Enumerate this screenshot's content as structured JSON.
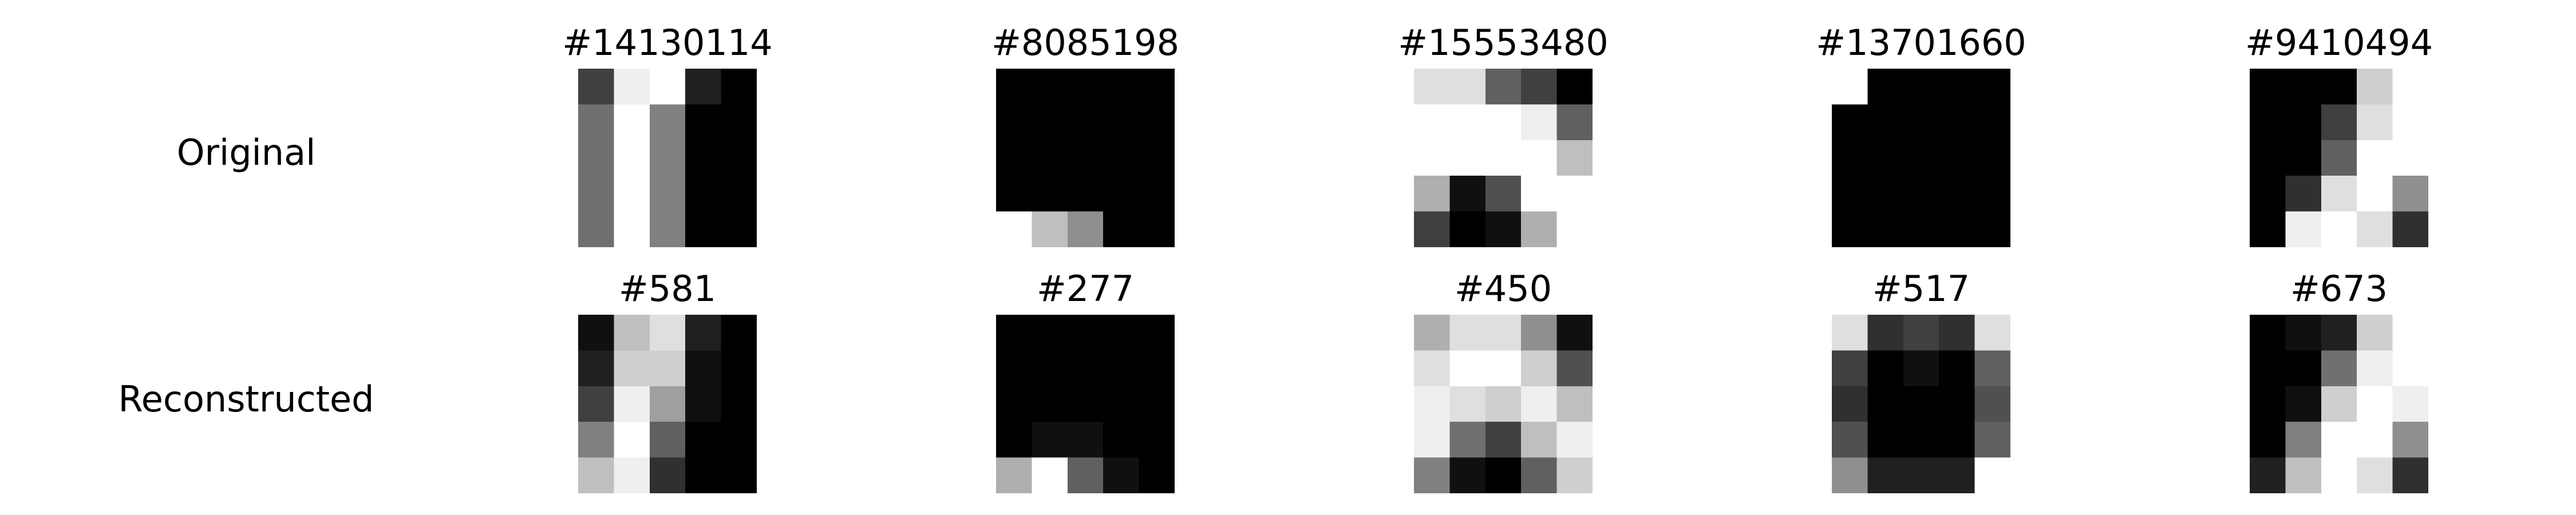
{
  "row_labels": {
    "original": "Original",
    "reconstructed": "Reconstructed"
  },
  "chart_data": {
    "type": "heatmap",
    "colormap": "gray_r",
    "value_range": [
      0,
      16
    ],
    "grid_size": [
      5,
      5
    ],
    "panels": [
      {
        "row": "original",
        "title": "#14130114",
        "values": [
          [
            12,
            1,
            0,
            14,
            16
          ],
          [
            9,
            0,
            8,
            16,
            16
          ],
          [
            9,
            0,
            8,
            16,
            16
          ],
          [
            9,
            0,
            8,
            16,
            16
          ],
          [
            9,
            0,
            8,
            16,
            16
          ]
        ]
      },
      {
        "row": "original",
        "title": "#8085198",
        "values": [
          [
            16,
            16,
            16,
            16,
            16
          ],
          [
            16,
            16,
            16,
            16,
            16
          ],
          [
            16,
            16,
            16,
            16,
            16
          ],
          [
            16,
            16,
            16,
            16,
            16
          ],
          [
            0,
            4,
            7,
            16,
            16
          ]
        ]
      },
      {
        "row": "original",
        "title": "#15553480",
        "values": [
          [
            2,
            2,
            10,
            12,
            16
          ],
          [
            0,
            0,
            0,
            1,
            10
          ],
          [
            0,
            0,
            0,
            0,
            4
          ],
          [
            5,
            15,
            11,
            0,
            0
          ],
          [
            12,
            16,
            15,
            5,
            0
          ]
        ]
      },
      {
        "row": "original",
        "title": "#13701660",
        "values": [
          [
            0,
            16,
            16,
            16,
            16
          ],
          [
            16,
            16,
            16,
            16,
            16
          ],
          [
            16,
            16,
            16,
            16,
            16
          ],
          [
            16,
            16,
            16,
            16,
            16
          ],
          [
            16,
            16,
            16,
            16,
            16
          ]
        ]
      },
      {
        "row": "original",
        "title": "#9410494",
        "values": [
          [
            16,
            16,
            16,
            3,
            0
          ],
          [
            16,
            16,
            12,
            2,
            0
          ],
          [
            16,
            16,
            10,
            0,
            0
          ],
          [
            16,
            13,
            2,
            0,
            7
          ],
          [
            16,
            1,
            0,
            2,
            13
          ]
        ]
      },
      {
        "row": "reconstructed",
        "title": "#581",
        "values": [
          [
            15,
            4,
            2,
            14,
            16
          ],
          [
            14,
            3,
            3,
            15,
            16
          ],
          [
            12,
            1,
            6,
            15,
            16
          ],
          [
            8,
            0,
            10,
            16,
            16
          ],
          [
            4,
            1,
            13,
            16,
            16
          ]
        ]
      },
      {
        "row": "reconstructed",
        "title": "#277",
        "values": [
          [
            16,
            16,
            16,
            16,
            16
          ],
          [
            16,
            16,
            16,
            16,
            16
          ],
          [
            16,
            16,
            16,
            16,
            16
          ],
          [
            16,
            15,
            15,
            16,
            16
          ],
          [
            5,
            0,
            10,
            15,
            16
          ]
        ]
      },
      {
        "row": "reconstructed",
        "title": "#450",
        "values": [
          [
            5,
            2,
            2,
            7,
            15
          ],
          [
            2,
            0,
            0,
            3,
            11
          ],
          [
            1,
            2,
            3,
            1,
            4
          ],
          [
            1,
            9,
            12,
            4,
            1
          ],
          [
            8,
            15,
            16,
            10,
            3
          ]
        ]
      },
      {
        "row": "reconstructed",
        "title": "#517",
        "values": [
          [
            2,
            13,
            12,
            13,
            2
          ],
          [
            12,
            16,
            15,
            16,
            10
          ],
          [
            13,
            16,
            16,
            16,
            11
          ],
          [
            11,
            16,
            16,
            16,
            10
          ],
          [
            7,
            14,
            14,
            14,
            0
          ]
        ]
      },
      {
        "row": "reconstructed",
        "title": "#673",
        "values": [
          [
            16,
            15,
            14,
            3,
            0
          ],
          [
            16,
            16,
            9,
            1,
            0
          ],
          [
            16,
            15,
            3,
            0,
            1
          ],
          [
            16,
            8,
            0,
            0,
            7
          ],
          [
            14,
            4,
            0,
            2,
            13
          ]
        ]
      }
    ]
  }
}
